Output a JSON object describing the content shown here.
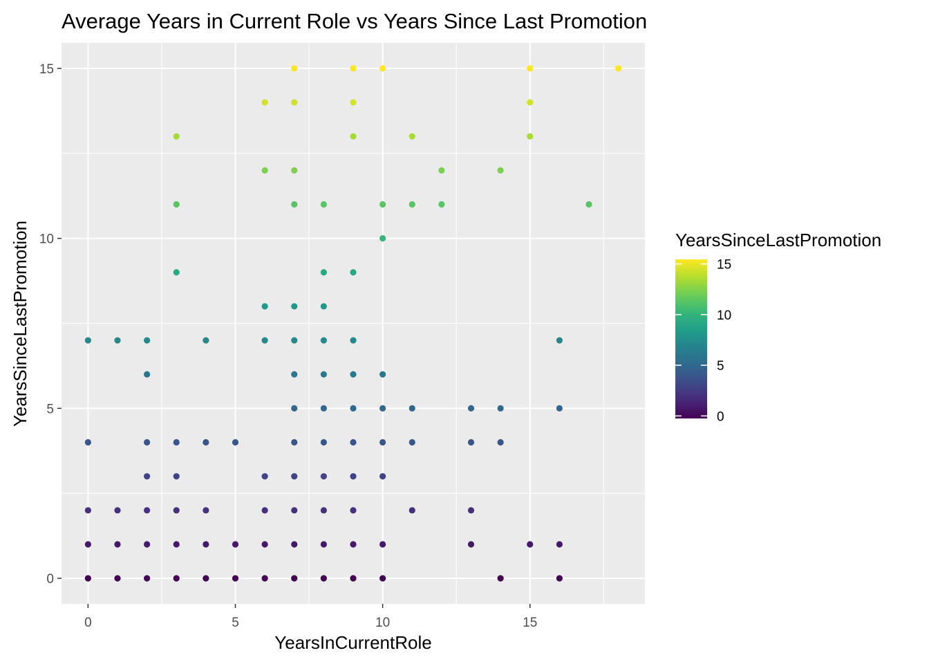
{
  "chart_data": {
    "type": "scatter",
    "title": "Average Years in Current Role vs Years Since Last Promotion",
    "xlabel": "YearsInCurrentRole",
    "ylabel": "YearsSinceLastPromotion",
    "xlim": [
      -0.9,
      18.9
    ],
    "ylim": [
      -0.75,
      15.75
    ],
    "x_ticks": [
      0,
      5,
      10,
      15
    ],
    "y_ticks": [
      0,
      5,
      10,
      15
    ],
    "grid": true,
    "color_scale": "viridis",
    "legend": {
      "title": "YearsSinceLastPromotion",
      "placement": "right",
      "range": [
        0,
        15
      ],
      "ticks": [
        0,
        5,
        10,
        15
      ]
    },
    "points": [
      [
        0,
        0
      ],
      [
        1,
        0
      ],
      [
        2,
        0
      ],
      [
        3,
        0
      ],
      [
        4,
        0
      ],
      [
        5,
        0
      ],
      [
        6,
        0
      ],
      [
        7,
        0
      ],
      [
        8,
        0
      ],
      [
        9,
        0
      ],
      [
        10,
        0
      ],
      [
        14,
        0
      ],
      [
        16,
        0
      ],
      [
        0,
        1
      ],
      [
        1,
        1
      ],
      [
        2,
        1
      ],
      [
        3,
        1
      ],
      [
        4,
        1
      ],
      [
        5,
        1
      ],
      [
        6,
        1
      ],
      [
        7,
        1
      ],
      [
        8,
        1
      ],
      [
        9,
        1
      ],
      [
        10,
        1
      ],
      [
        13,
        1
      ],
      [
        15,
        1
      ],
      [
        16,
        1
      ],
      [
        0,
        2
      ],
      [
        1,
        2
      ],
      [
        2,
        2
      ],
      [
        3,
        2
      ],
      [
        4,
        2
      ],
      [
        6,
        2
      ],
      [
        7,
        2
      ],
      [
        8,
        2
      ],
      [
        9,
        2
      ],
      [
        11,
        2
      ],
      [
        13,
        2
      ],
      [
        2,
        3
      ],
      [
        3,
        3
      ],
      [
        6,
        3
      ],
      [
        7,
        3
      ],
      [
        8,
        3
      ],
      [
        9,
        3
      ],
      [
        10,
        3
      ],
      [
        0,
        4
      ],
      [
        2,
        4
      ],
      [
        3,
        4
      ],
      [
        4,
        4
      ],
      [
        5,
        4
      ],
      [
        7,
        4
      ],
      [
        8,
        4
      ],
      [
        9,
        4
      ],
      [
        10,
        4
      ],
      [
        11,
        4
      ],
      [
        13,
        4
      ],
      [
        14,
        4
      ],
      [
        7,
        5
      ],
      [
        8,
        5
      ],
      [
        9,
        5
      ],
      [
        10,
        5
      ],
      [
        11,
        5
      ],
      [
        13,
        5
      ],
      [
        14,
        5
      ],
      [
        16,
        5
      ],
      [
        2,
        6
      ],
      [
        7,
        6
      ],
      [
        8,
        6
      ],
      [
        9,
        6
      ],
      [
        10,
        6
      ],
      [
        0,
        7
      ],
      [
        1,
        7
      ],
      [
        2,
        7
      ],
      [
        4,
        7
      ],
      [
        6,
        7
      ],
      [
        7,
        7
      ],
      [
        8,
        7
      ],
      [
        9,
        7
      ],
      [
        16,
        7
      ],
      [
        6,
        8
      ],
      [
        7,
        8
      ],
      [
        8,
        8
      ],
      [
        3,
        9
      ],
      [
        8,
        9
      ],
      [
        9,
        9
      ],
      [
        10,
        10
      ],
      [
        3,
        11
      ],
      [
        7,
        11
      ],
      [
        8,
        11
      ],
      [
        10,
        11
      ],
      [
        11,
        11
      ],
      [
        12,
        11
      ],
      [
        17,
        11
      ],
      [
        6,
        12
      ],
      [
        7,
        12
      ],
      [
        12,
        12
      ],
      [
        14,
        12
      ],
      [
        3,
        13
      ],
      [
        9,
        13
      ],
      [
        11,
        13
      ],
      [
        15,
        13
      ],
      [
        6,
        14
      ],
      [
        7,
        14
      ],
      [
        9,
        14
      ],
      [
        15,
        14
      ],
      [
        7,
        15
      ],
      [
        9,
        15
      ],
      [
        10,
        15
      ],
      [
        15,
        15
      ],
      [
        18,
        15
      ]
    ]
  }
}
